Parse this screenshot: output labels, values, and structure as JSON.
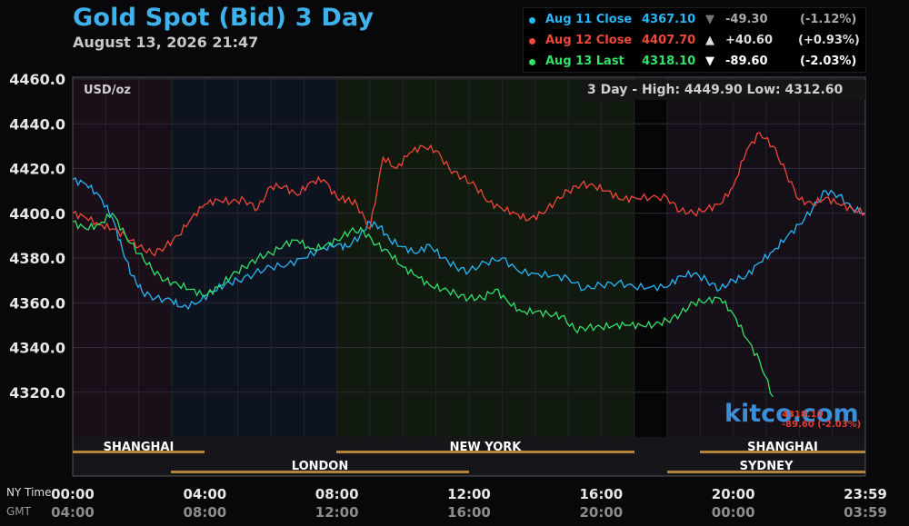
{
  "header": {
    "title": "Gold Spot (Bid) 3 Day",
    "timestamp": "August 13, 2026 21:47"
  },
  "legend": [
    {
      "label": "Aug 11 Close",
      "value": "4367.10",
      "arrow": "▼",
      "change": "-49.30",
      "pct": "(-1.12%)",
      "color": "#29b6f6"
    },
    {
      "label": "Aug 12 Close",
      "value": "4407.70",
      "arrow": "▲",
      "change": "+40.60",
      "pct": "(+0.93%)",
      "color": "#f0473b"
    },
    {
      "label": "Aug 13 Last",
      "value": "4318.10",
      "arrow": "▼",
      "change": "-89.60",
      "pct": "(-2.03%)",
      "color": "#33e06a"
    }
  ],
  "unit_label": "USD/oz",
  "high_low": {
    "text": "3 Day - High: 4449.90   Low: 4312.60"
  },
  "logo": "kitco.com",
  "last_label": {
    "line1": "4318.10",
    "line2": "-89.60 (-2.03%)"
  },
  "time_axis": {
    "ny_label": "NY Time",
    "gmt_label": "GMT",
    "ny_ticks": [
      "00:00",
      "04:00",
      "08:00",
      "12:00",
      "16:00",
      "20:00",
      "23:59"
    ],
    "gmt_ticks": [
      "04:00",
      "08:00",
      "12:00",
      "16:00",
      "20:00",
      "00:00",
      "03:59"
    ]
  },
  "markets": {
    "shanghai_1": "SHANGHAI",
    "london": "LONDON",
    "new_york": "NEW YORK",
    "shanghai_2": "SHANGHAI",
    "sydney": "SYDNEY"
  },
  "chart_data": {
    "type": "line",
    "x_unit": "NY time (hours)",
    "xlim": [
      0,
      24
    ],
    "ylim": [
      4300,
      4460
    ],
    "y_ticks": [
      "4460.0",
      "4440.0",
      "4420.0",
      "4400.0",
      "4380.0",
      "4360.0",
      "4340.0",
      "4320.0"
    ],
    "y_tick_values": [
      4460,
      4440,
      4420,
      4400,
      4380,
      4360,
      4340,
      4320
    ],
    "series": [
      {
        "name": "Aug 11",
        "color": "#29b6f6",
        "x": [
          0,
          0.4,
          0.8,
          1.2,
          1.5,
          1.8,
          2.1,
          2.5,
          3.0,
          3.3,
          3.8,
          4.2,
          4.6,
          5.0,
          5.5,
          6.0,
          6.5,
          7.0,
          7.5,
          8.0,
          8.3,
          8.7,
          9.0,
          9.3,
          9.6,
          10.0,
          10.4,
          10.8,
          11.2,
          11.6,
          12.0,
          12.5,
          13.0,
          13.5,
          14.0,
          14.5,
          15.0,
          15.5,
          16.0,
          16.5,
          17.0,
          17.5,
          18.0,
          18.4,
          18.8,
          19.2,
          19.6,
          20.0,
          20.4,
          20.8,
          21.2,
          21.6,
          22.0,
          22.4,
          22.8,
          23.2,
          23.6,
          24.0
        ],
        "y": [
          4415,
          4413,
          4408,
          4398,
          4384,
          4372,
          4365,
          4362,
          4361,
          4358,
          4360,
          4365,
          4368,
          4370,
          4373,
          4376,
          4377,
          4380,
          4384,
          4386,
          4385,
          4390,
          4396,
          4394,
          4388,
          4385,
          4382,
          4386,
          4380,
          4376,
          4374,
          4378,
          4380,
          4374,
          4373,
          4372,
          4371,
          4366,
          4368,
          4369,
          4367,
          4367,
          4367,
          4372,
          4373,
          4370,
          4366,
          4370,
          4372,
          4378,
          4383,
          4389,
          4395,
          4402,
          4410,
          4408,
          4402,
          4400
        ]
      },
      {
        "name": "Aug 12",
        "color": "#f0473b",
        "x": [
          0,
          0.4,
          0.8,
          1.2,
          1.6,
          2.0,
          2.4,
          2.8,
          3.2,
          3.6,
          4.0,
          4.4,
          4.8,
          5.2,
          5.6,
          6.0,
          6.4,
          6.8,
          7.2,
          7.6,
          8.0,
          8.3,
          8.6,
          9.0,
          9.4,
          9.8,
          10.2,
          10.6,
          11.0,
          11.4,
          11.8,
          12.2,
          12.6,
          13.0,
          13.4,
          13.8,
          14.2,
          14.6,
          15.0,
          15.4,
          15.8,
          16.2,
          16.6,
          17.0,
          17.5,
          18.0,
          18.4,
          18.8,
          19.2,
          19.6,
          20.0,
          20.4,
          20.8,
          21.2,
          21.6,
          22.0,
          22.4,
          22.8,
          23.2,
          23.6,
          24.0
        ],
        "y": [
          4400,
          4398,
          4395,
          4393,
          4390,
          4385,
          4382,
          4385,
          4390,
          4398,
          4404,
          4406,
          4405,
          4406,
          4402,
          4412,
          4412,
          4408,
          4414,
          4415,
          4407,
          4406,
          4404,
          4393,
          4425,
          4420,
          4427,
          4430,
          4428,
          4420,
          4416,
          4412,
          4405,
          4402,
          4400,
          4397,
          4400,
          4405,
          4410,
          4413,
          4412,
          4410,
          4406,
          4407,
          4407,
          4407,
          4401,
          4400,
          4402,
          4404,
          4412,
          4428,
          4436,
          4430,
          4418,
          4406,
          4404,
          4407,
          4404,
          4402,
          4400
        ]
      },
      {
        "name": "Aug 13",
        "color": "#33e06a",
        "x": [
          0,
          0.4,
          0.8,
          1.2,
          1.6,
          2.0,
          2.4,
          2.8,
          3.2,
          3.6,
          4.0,
          4.4,
          4.8,
          5.2,
          5.6,
          6.0,
          6.4,
          6.8,
          7.2,
          7.6,
          8.0,
          8.4,
          8.8,
          9.2,
          9.6,
          10.0,
          10.4,
          10.8,
          11.2,
          11.6,
          12.0,
          12.4,
          12.8,
          13.2,
          13.6,
          14.0,
          14.4,
          14.8,
          15.2,
          15.6,
          16.0,
          16.4,
          16.8,
          17.2,
          17.6,
          18.0,
          18.4,
          18.8,
          19.2,
          19.6,
          20.0,
          20.4,
          20.8,
          21.2
        ],
        "y": [
          4396,
          4393,
          4395,
          4400,
          4390,
          4382,
          4375,
          4370,
          4368,
          4366,
          4363,
          4367,
          4372,
          4376,
          4380,
          4382,
          4386,
          4388,
          4384,
          4385,
          4388,
          4392,
          4392,
          4386,
          4382,
          4376,
          4372,
          4368,
          4366,
          4364,
          4362,
          4362,
          4366,
          4360,
          4356,
          4356,
          4355,
          4354,
          4348,
          4349,
          4349,
          4350,
          4350,
          4350,
          4350,
          4352,
          4355,
          4360,
          4361,
          4362,
          4355,
          4344,
          4334,
          4318
        ]
      }
    ]
  }
}
